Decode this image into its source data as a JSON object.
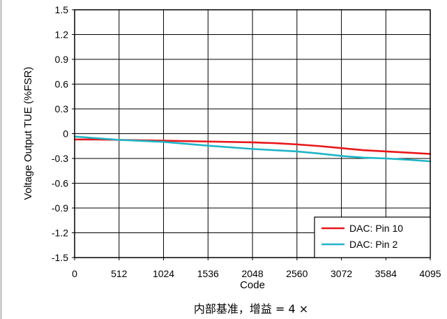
{
  "chart_data": {
    "type": "line",
    "title": "",
    "xlabel": "Code",
    "ylabel": "Voltage Output TUE (%FSR)",
    "xlim": [
      0,
      4095
    ],
    "ylim": [
      -1.5,
      1.5
    ],
    "xticks": [
      "0",
      "512",
      "1024",
      "1536",
      "2048",
      "2560",
      "3072",
      "3584",
      "4095"
    ],
    "yticks": [
      "1.5",
      "1.2",
      "0.9",
      "0.6",
      "0.3",
      "0",
      "-0.3",
      "-0.6",
      "-0.9",
      "-1.2",
      "-1.5"
    ],
    "grid": true,
    "legend_position": "bottom-right",
    "series": [
      {
        "name": "DAC: Pin 10",
        "color": "#e8161b",
        "x": [
          0,
          256,
          512,
          1024,
          1536,
          2048,
          2304,
          2560,
          2816,
          3072,
          3328,
          3584,
          3840,
          4095
        ],
        "y": [
          -0.07,
          -0.07,
          -0.075,
          -0.085,
          -0.095,
          -0.105,
          -0.115,
          -0.13,
          -0.15,
          -0.175,
          -0.2,
          -0.215,
          -0.23,
          -0.245
        ]
      },
      {
        "name": "DAC: Pin 2",
        "color": "#1fb5c6",
        "x": [
          0,
          256,
          512,
          1024,
          1536,
          2048,
          2304,
          2560,
          2816,
          3072,
          3328,
          3584,
          3840,
          4095
        ],
        "y": [
          -0.035,
          -0.055,
          -0.075,
          -0.1,
          -0.145,
          -0.185,
          -0.2,
          -0.215,
          -0.24,
          -0.27,
          -0.29,
          -0.3,
          -0.315,
          -0.335
        ]
      }
    ]
  },
  "caption": "内部基准，增益 = 4 ×"
}
